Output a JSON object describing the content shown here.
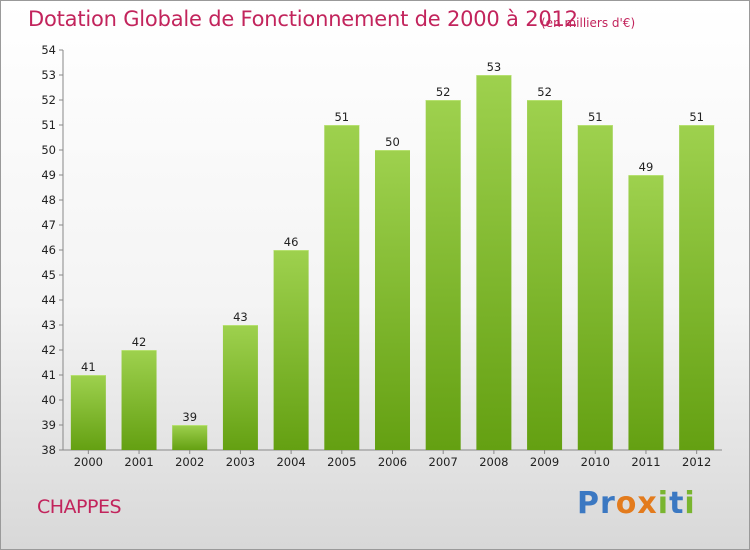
{
  "header": {
    "title": "Dotation Globale de Fonctionnement de 2000 à 2012",
    "unit": "(en milliers d'€)"
  },
  "footer": {
    "commune": "CHAPPES",
    "brand": "Proxiti"
  },
  "colors": {
    "accent": "#c2245c",
    "bar_light": "#9ed14e",
    "bar_dark": "#64a012"
  },
  "chart_data": {
    "type": "bar",
    "title": "Dotation Globale de Fonctionnement de 2000 à 2012",
    "xlabel": "",
    "ylabel": "",
    "categories": [
      "2000",
      "2001",
      "2002",
      "2003",
      "2004",
      "2005",
      "2006",
      "2007",
      "2008",
      "2009",
      "2010",
      "2011",
      "2012"
    ],
    "values": [
      41,
      42,
      39,
      43,
      46,
      51,
      50,
      52,
      53,
      52,
      51,
      49,
      51
    ],
    "ylim": [
      38,
      54
    ],
    "yticks": [
      38,
      39,
      40,
      41,
      42,
      43,
      44,
      45,
      46,
      47,
      48,
      49,
      50,
      51,
      52,
      53,
      54
    ],
    "grid": false,
    "legend": "none"
  }
}
